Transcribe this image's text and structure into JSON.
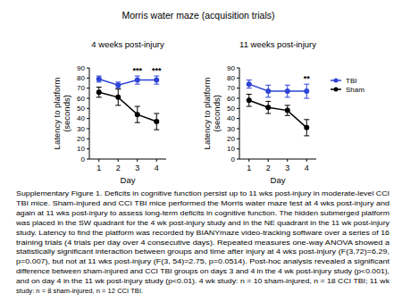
{
  "title": "Morris water maze (acquisition trials)",
  "caption": [
    "Supplementary Figure 1. Deficits in cognitive function persist up to 11 wks post-injury in moderate-level CCI",
    "TBI mice.  Sham-injured and CCI TBI mice performed the Morris water maze test at 4 wks post-injury and",
    "again at 11 wks post-injury to assess long-term deficits in cognitive function. The hidden submerged platform",
    "was placed in the SW quadrant for the 4 wk  post-injury study and in the NE quadrant in the 11 wk post-injury",
    "study. Latency to find the platform was recorded by BIANYmaze video-tracking software over a series of 16",
    "training trials (4 trials per day over 4 consecutive days). Repeated measures one-way ANOVA showed a",
    "statistically significant interaction between groups and time after injury at 4 wks post-injury (F(3,72)=6.29,",
    "p=0.007), but not at 11 wks post-injury (F(3, 54)=2.75, p=0.0514). Post-hoc analysis revealed a significant",
    "difference  between sham-injured and CCI TBI groups on days 3 and 4 in the 4 wk post-injury study (p<0.001),",
    "and on day 4 in the 11 wk post-injury study (p<0.01). 4 wk study: n = 10 sham-injured, n = 18 CCI TBI; 11 wk",
    "study: n = 8 sham-injured, n = 12 CCI TBI."
  ],
  "chart_data": [
    {
      "type": "line",
      "title": "4 weeks post-injury",
      "x_label": "Day",
      "y_label": [
        "Latency to platform",
        "(seconds)"
      ],
      "categories": [
        "1",
        "2",
        "3",
        "4"
      ],
      "ylim": [
        0,
        90
      ],
      "yticks": [
        0,
        10,
        20,
        30,
        40,
        50,
        60,
        70,
        80,
        90
      ],
      "series": [
        {
          "name": "TBI",
          "color": "#2e44d6",
          "marker": "circle",
          "values": [
            79,
            73,
            78,
            78
          ],
          "errors": [
            3,
            3,
            4,
            4
          ]
        },
        {
          "name": "Sham",
          "color": "#000000",
          "marker": "circle",
          "values": [
            66,
            61,
            44,
            37
          ],
          "errors": [
            5,
            8,
            8,
            8
          ]
        }
      ],
      "annotations": [
        {
          "text": "***",
          "category": "3"
        },
        {
          "text": "***",
          "category": "4"
        }
      ]
    },
    {
      "type": "line",
      "title": "11 weeks post-injury",
      "x_label": "Day",
      "y_label": [
        "Latency to platform",
        "(seconds)"
      ],
      "categories": [
        "1",
        "2",
        "3",
        "4"
      ],
      "ylim": [
        0,
        90
      ],
      "yticks": [
        0,
        10,
        20,
        30,
        40,
        50,
        60,
        70,
        80,
        90
      ],
      "legend": "right",
      "series": [
        {
          "name": "TBI",
          "color": "#2e44d6",
          "marker": "circle",
          "values": [
            74,
            67,
            67,
            67
          ],
          "errors": [
            4,
            6,
            6,
            7
          ]
        },
        {
          "name": "Sham",
          "color": "#000000",
          "marker": "circle",
          "values": [
            58,
            51,
            48,
            31
          ],
          "errors": [
            6,
            6,
            5,
            8
          ]
        }
      ],
      "annotations": [
        {
          "text": "**",
          "category": "4"
        }
      ]
    }
  ]
}
